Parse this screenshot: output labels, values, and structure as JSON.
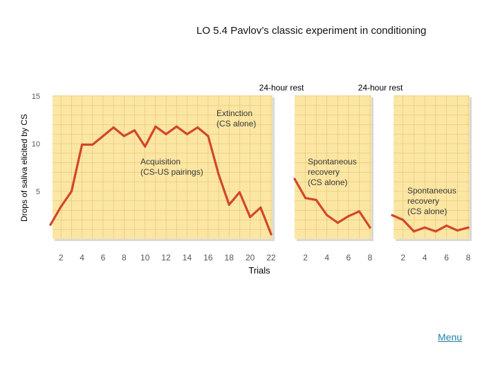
{
  "slide": {
    "title": "LO 5.4 Pavlov’s classic experiment in conditioning",
    "menu_label": "Menu"
  },
  "colors": {
    "panel": "#fbe6a4",
    "grid": "#e2c46e",
    "line": "#d2452c",
    "text": "#555555"
  },
  "chart_data": {
    "type": "line",
    "ylabel": "Drops of saliva elicited by CS",
    "xlabel": "Trials",
    "ylim": [
      0,
      15
    ],
    "yticks": [
      5,
      10,
      15
    ],
    "rest_labels": [
      "24-hour rest",
      "24-hour rest"
    ],
    "panels": [
      {
        "xlim": [
          1,
          22
        ],
        "xticks": [
          2,
          4,
          6,
          8,
          10,
          12,
          14,
          16,
          18,
          20,
          22
        ],
        "annotations": [
          {
            "lines": [
              "Extinction",
              "(CS alone)"
            ]
          },
          {
            "lines": [
              "Acquisition",
              "(CS-US pairings)"
            ]
          }
        ],
        "series": [
          {
            "x": [
              1,
              2,
              3,
              4,
              5,
              6,
              7,
              8,
              9,
              10,
              11,
              12,
              13,
              14,
              15
            ],
            "y": [
              1.5,
              3.4,
              5.0,
              9.9,
              9.9,
              10.8,
              11.7,
              10.8,
              11.4,
              9.7,
              11.8,
              11.0,
              11.8,
              11.0,
              11.7
            ]
          },
          {
            "x": [
              15,
              16,
              17,
              18,
              19,
              20,
              21,
              22
            ],
            "y": [
              11.7,
              10.8,
              6.8,
              3.6,
              4.9,
              2.3,
              3.3,
              0.5
            ]
          }
        ]
      },
      {
        "xlim": [
          1,
          8
        ],
        "xticks": [
          2,
          4,
          6,
          8
        ],
        "annotations": [
          {
            "lines": [
              "Spontaneous",
              "recovery",
              "(CS alone)"
            ]
          }
        ],
        "series": [
          {
            "x": [
              1,
              2,
              3,
              4,
              5,
              6,
              7,
              8
            ],
            "y": [
              6.3,
              4.3,
              4.1,
              2.5,
              1.7,
              2.4,
              2.9,
              1.2
            ]
          }
        ]
      },
      {
        "xlim": [
          1,
          8
        ],
        "xticks": [
          2,
          4,
          6,
          8
        ],
        "annotations": [
          {
            "lines": [
              "Spontaneous",
              "recovery",
              "(CS alone)"
            ]
          }
        ],
        "series": [
          {
            "x": [
              1,
              2,
              3,
              4,
              5,
              6,
              7,
              8
            ],
            "y": [
              2.5,
              2.0,
              0.8,
              1.2,
              0.8,
              1.4,
              0.9,
              1.2
            ]
          }
        ]
      }
    ]
  }
}
